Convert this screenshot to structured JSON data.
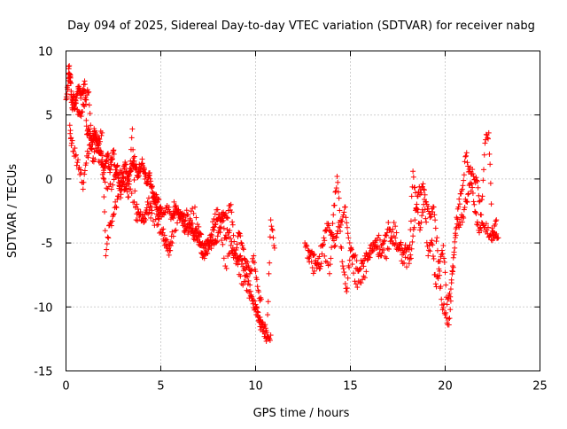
{
  "colors": {
    "series": "#ff0000",
    "axis": "#000000",
    "grid": "#a0a0a0",
    "background": "#ffffff"
  },
  "chart_data": {
    "type": "scatter",
    "marker": "plus",
    "title": "Day 094 of 2025, Sidereal Day-to-day VTEC variation (SDTVAR) for receiver nabg",
    "xlabel": "GPS time / hours",
    "ylabel": "SDTVAR / TECUs",
    "xlim": [
      0,
      25
    ],
    "ylim": [
      -15,
      10
    ],
    "xticks": [
      0,
      5,
      10,
      15,
      20,
      25
    ],
    "yticks": [
      -15,
      -10,
      -5,
      0,
      5,
      10
    ],
    "grid": true,
    "series": [
      {
        "name": "SDTVAR",
        "segments": [
          {
            "x": [
              0.0,
              0.1,
              0.15,
              0.2,
              0.25,
              0.3,
              0.35,
              0.4,
              0.45,
              0.5,
              0.6,
              0.7,
              0.8,
              0.9,
              1.0,
              1.1,
              1.2,
              1.3,
              1.4,
              1.5,
              1.6,
              1.7,
              1.8,
              1.9,
              2.0,
              2.1,
              2.2,
              2.3,
              2.4,
              2.5,
              2.6,
              2.7,
              2.8,
              2.9,
              3.0,
              3.1,
              3.2,
              3.3,
              3.4,
              3.5,
              3.6,
              3.7,
              3.8,
              3.9,
              4.0,
              4.1,
              4.2,
              4.3,
              4.4,
              4.5,
              4.6,
              4.7,
              4.8,
              4.9,
              5.0,
              5.2,
              5.4,
              5.6,
              5.8,
              6.0,
              6.2,
              6.4,
              6.6,
              6.8,
              7.0,
              7.2,
              7.4,
              7.6,
              7.8,
              8.0,
              8.2,
              8.4,
              8.6,
              8.8,
              9.0,
              9.2,
              9.4,
              9.6,
              9.8,
              10.0,
              10.2,
              10.4,
              10.6,
              10.8
            ],
            "y": [
              6.2,
              7.0,
              8.6,
              8.2,
              7.5,
              6.0,
              5.8,
              6.4,
              5.5,
              5.9,
              6.8,
              7.1,
              6.6,
              7.0,
              7.4,
              3.5,
              3.9,
              3.2,
              3.0,
              3.7,
              3.1,
              2.6,
              2.0,
              1.5,
              0.5,
              1.2,
              1.8,
              0.8,
              1.5,
              2.2,
              0.3,
              1.0,
              -0.5,
              -1.2,
              0.2,
              1.1,
              0.6,
              0.0,
              0.8,
              1.2,
              1.4,
              0.9,
              0.5,
              0.8,
              1.2,
              0.7,
              0.2,
              -0.2,
              0.3,
              -0.6,
              -1.4,
              -2.0,
              -2.4,
              -2.8,
              -2.2,
              -2.6,
              -2.4,
              -3.0,
              -2.1,
              -3.2,
              -3.0,
              -2.8,
              -3.6,
              -4.0,
              -4.2,
              -5.0,
              -5.6,
              -5.2,
              -4.0,
              -3.2,
              -2.8,
              -4.6,
              -4.2,
              -5.6,
              -6.4,
              -6.0,
              -7.0,
              -8.2,
              -9.2,
              -10.2,
              -10.8,
              -11.4,
              -12.0,
              -12.2
            ]
          },
          {
            "x": [
              0.2,
              0.3,
              0.5,
              0.7,
              0.9,
              1.1,
              1.3,
              1.5,
              1.7,
              1.9,
              2.1,
              2.3,
              2.5,
              2.7,
              2.9,
              3.1,
              3.3,
              3.5,
              3.7,
              3.9,
              4.1,
              4.3,
              4.5,
              4.7,
              4.9,
              5.1,
              5.3,
              5.5,
              5.7,
              5.9,
              6.1,
              6.3,
              6.5,
              6.7,
              6.9,
              7.1,
              7.3,
              7.5,
              7.7,
              7.9,
              8.1,
              8.3,
              8.5,
              8.7,
              8.9,
              9.1,
              9.3,
              9.5,
              9.7,
              9.9,
              10.1,
              10.3
            ],
            "y": [
              4.2,
              2.8,
              1.8,
              0.9,
              -0.8,
              1.8,
              2.4,
              3.3,
              2.9,
              3.6,
              -6.0,
              -3.6,
              -2.8,
              -1.6,
              0.5,
              -0.8,
              -1.4,
              3.9,
              -3.2,
              -2.8,
              -3.4,
              -1.8,
              -2.2,
              -1.2,
              -1.6,
              -4.2,
              -5.4,
              -5.6,
              -1.8,
              -2.4,
              -3.2,
              -4.0,
              -3.8,
              -4.4,
              -4.8,
              -5.2,
              -6.2,
              -4.8,
              -5.0,
              -4.8,
              -3.8,
              -2.6,
              -3.0,
              -2.0,
              -5.8,
              -4.2,
              -5.2,
              -6.4,
              -7.4,
              -6.0,
              -8.4,
              -9.4
            ]
          },
          {
            "x": [
              0.6,
              0.8,
              1.0,
              1.2,
              1.4,
              1.6,
              2.0,
              2.4,
              2.8,
              3.2,
              3.6,
              4.0,
              4.4,
              4.8,
              5.2,
              5.6,
              6.0,
              6.4,
              6.8,
              7.2,
              7.6,
              8.0,
              8.4,
              8.8,
              9.2,
              9.6,
              10.0,
              10.2,
              10.4,
              10.6,
              10.8,
              11.0
            ],
            "y": [
              5.4,
              4.9,
              6.2,
              6.8,
              1.4,
              2.2,
              0.0,
              -0.8,
              0.4,
              -0.4,
              -1.8,
              -3.2,
              -2.6,
              -3.6,
              -4.4,
              -5.0,
              -2.8,
              -3.6,
              -2.2,
              -5.8,
              -4.4,
              -2.4,
              -6.8,
              -5.4,
              -7.6,
              -8.8,
              -9.8,
              -11.2,
              -11.6,
              -12.4,
              -3.2,
              -5.4
            ]
          },
          {
            "x": [
              12.6,
              12.8,
              13.0,
              13.2,
              13.4,
              13.6,
              13.8,
              14.0,
              14.2,
              14.4,
              14.6,
              14.8,
              15.0,
              15.2,
              15.4,
              15.6,
              15.8,
              16.0,
              16.2,
              16.4,
              16.6,
              16.8,
              17.0,
              17.2,
              17.4,
              17.6,
              17.8,
              18.0,
              18.2,
              18.4,
              18.6,
              18.8,
              19.0,
              19.2,
              19.4,
              19.6,
              19.8,
              20.0,
              20.2,
              20.4,
              20.6,
              20.8,
              21.0,
              21.2,
              21.4,
              21.6,
              21.8,
              22.0,
              22.2,
              22.4,
              22.6,
              22.8
            ],
            "y": [
              -5.0,
              -6.2,
              -5.8,
              -6.6,
              -7.0,
              -4.6,
              -3.8,
              -4.2,
              -5.2,
              -3.4,
              -6.8,
              -8.8,
              -5.6,
              -6.0,
              -7.2,
              -6.6,
              -6.2,
              -5.8,
              -5.0,
              -5.4,
              -6.0,
              -4.8,
              -3.4,
              -4.6,
              -5.0,
              -5.2,
              -5.8,
              -5.4,
              -6.2,
              -3.2,
              -1.0,
              -0.6,
              -1.8,
              -3.0,
              -2.2,
              -5.6,
              -9.4,
              -10.6,
              -11.4,
              -6.8,
              -3.0,
              -3.6,
              -2.4,
              -1.2,
              -0.4,
              -2.6,
              -4.2,
              -3.6,
              -4.0,
              -4.4,
              -4.2,
              -4.6
            ]
          },
          {
            "x": [
              12.8,
              13.1,
              13.5,
              13.9,
              14.1,
              14.3,
              14.5,
              14.7,
              14.9,
              15.3,
              15.7,
              16.1,
              16.5,
              16.9,
              17.3,
              17.7,
              18.1,
              18.3,
              18.5,
              18.7,
              18.9,
              19.1,
              19.3,
              19.5,
              19.7,
              19.9,
              20.1,
              20.3,
              20.5,
              20.7,
              20.9,
              21.1,
              21.3,
              21.5,
              21.7,
              21.9,
              22.1,
              22.3,
              22.5,
              22.7
            ],
            "y": [
              -5.6,
              -7.2,
              -5.2,
              -7.4,
              -2.8,
              0.2,
              -3.6,
              -2.2,
              -4.6,
              -8.2,
              -7.6,
              -5.6,
              -4.4,
              -6.2,
              -3.4,
              -6.4,
              -6.6,
              0.6,
              -2.4,
              -3.8,
              -1.6,
              -6.0,
              -4.8,
              -8.2,
              -7.2,
              -5.2,
              -9.8,
              -8.6,
              -5.4,
              -2.2,
              -0.8,
              1.8,
              0.6,
              0.2,
              -0.2,
              -2.8,
              2.8,
              3.6,
              -4.8,
              -3.2
            ]
          }
        ]
      }
    ]
  }
}
